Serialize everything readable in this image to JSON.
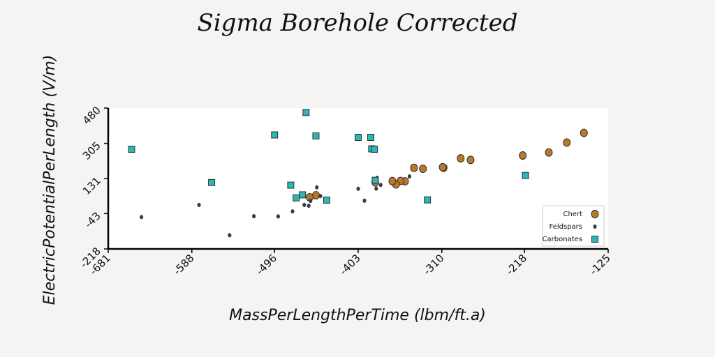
{
  "chart_data": {
    "type": "scatter",
    "title": "Sigma Borehole Corrected",
    "xlabel": "MassPerLengthPerTime (lbm/ft.a)",
    "ylabel": "ElectricPotentialPerLength (V/m)",
    "xlim": [
      -681,
      -125
    ],
    "ylim": [
      -218,
      480
    ],
    "xticks": [
      "-681",
      "-588",
      "-496",
      "-403",
      "-310",
      "-218",
      "-125"
    ],
    "yticks": [
      "-218",
      "-43",
      "131",
      "305",
      "480"
    ],
    "xtick_values": [
      -681,
      -588,
      -496,
      -403,
      -310,
      -218,
      -125
    ],
    "ytick_values": [
      -218,
      -43,
      131,
      305,
      480
    ],
    "grid": false,
    "legend_position": "lower-right",
    "series": [
      {
        "name": "Chert",
        "marker": "circle",
        "color": "#b87a2a",
        "points": [
          [
            -152,
            357
          ],
          [
            -171,
            309
          ],
          [
            -191,
            260
          ],
          [
            -220,
            245
          ],
          [
            -278,
            223
          ],
          [
            -289,
            231
          ],
          [
            -308,
            184
          ],
          [
            -309,
            187
          ],
          [
            -331,
            179
          ],
          [
            -341,
            184
          ],
          [
            -351,
            117
          ],
          [
            -356,
            119
          ],
          [
            -361,
            102
          ],
          [
            -365,
            118
          ],
          [
            -384,
            112
          ],
          [
            -450,
            48
          ],
          [
            -457,
            38
          ]
        ]
      },
      {
        "name": "Feldspars",
        "marker": "dot",
        "color": "#3a3a52",
        "points": [
          [
            -644,
            -60
          ],
          [
            -580,
            0
          ],
          [
            -546,
            -150
          ],
          [
            -519,
            -56
          ],
          [
            -492,
            -57
          ],
          [
            -476,
            -32
          ],
          [
            -463,
            0
          ],
          [
            -458,
            -4
          ],
          [
            -456,
            20
          ],
          [
            -449,
            87
          ],
          [
            -445,
            44
          ],
          [
            -403,
            80
          ],
          [
            -396,
            21
          ],
          [
            -383,
            81
          ],
          [
            -382,
            134
          ],
          [
            -378,
            99
          ],
          [
            -346,
            141
          ]
        ]
      },
      {
        "name": "Carbonates",
        "marker": "square",
        "color": "#2fb5b5",
        "points": [
          [
            -655,
            276
          ],
          [
            -566,
            111
          ],
          [
            -496,
            347
          ],
          [
            -478,
            98
          ],
          [
            -472,
            35
          ],
          [
            -465,
            50
          ],
          [
            -461,
            458
          ],
          [
            -450,
            342
          ],
          [
            -438,
            24
          ],
          [
            -403,
            335
          ],
          [
            -389,
            335
          ],
          [
            -388,
            278
          ],
          [
            -385,
            276
          ],
          [
            -384,
            122
          ],
          [
            -326,
            25
          ],
          [
            -217,
            146
          ]
        ]
      }
    ]
  }
}
